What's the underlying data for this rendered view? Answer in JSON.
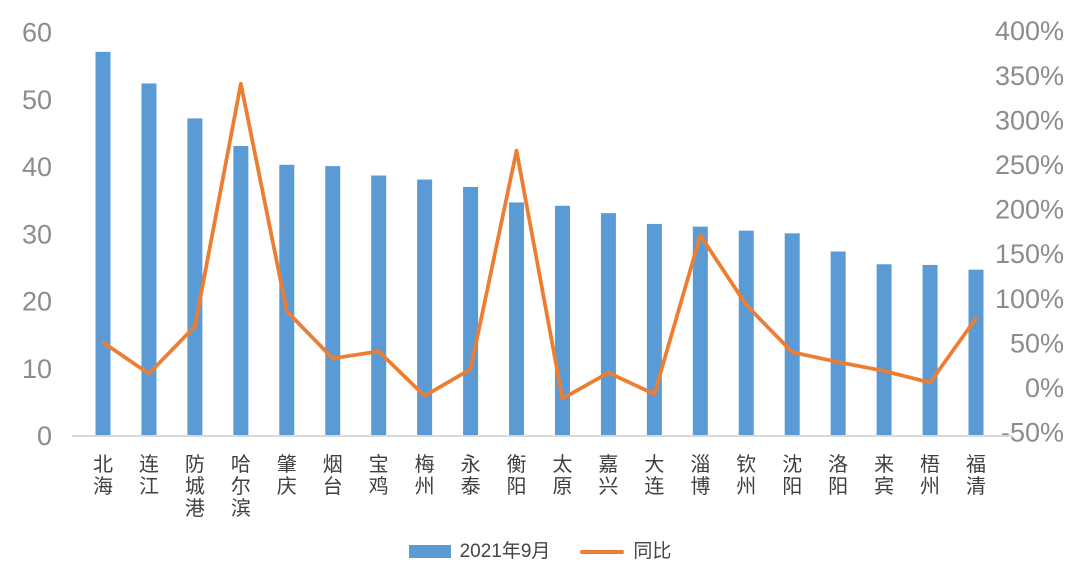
{
  "chart_data": {
    "type": "combo",
    "title": "",
    "categories": [
      "北海",
      "连江",
      "防城港",
      "哈尔滨",
      "肇庆",
      "烟台",
      "宝鸡",
      "梅州",
      "永泰",
      "衡阳",
      "太原",
      "嘉兴",
      "大连",
      "淄博",
      "钦州",
      "沈阳",
      "洛阳",
      "来宾",
      "梧州",
      "福清"
    ],
    "series": [
      {
        "name": "2021年9月",
        "type": "bar",
        "axis": "left",
        "values": [
          57,
          52.3,
          47.1,
          43,
          40.2,
          40,
          38.6,
          38,
          36.9,
          34.6,
          34.1,
          33,
          31.4,
          31,
          30.4,
          30,
          27.3,
          25.4,
          25.3,
          24.6
        ]
      },
      {
        "name": "同比",
        "type": "line",
        "axis": "right",
        "unit": "%",
        "values": [
          50,
          15,
          68,
          340,
          85,
          32,
          40,
          -10,
          20,
          265,
          -13,
          16,
          -8,
          170,
          92,
          39,
          28,
          18,
          5,
          77
        ]
      }
    ],
    "left_axis": {
      "min": 0,
      "max": 60,
      "step": 10,
      "ticks": [
        0,
        10,
        20,
        30,
        40,
        50,
        60
      ]
    },
    "right_axis": {
      "min": -50,
      "max": 400,
      "step": 50,
      "ticks": [
        -50,
        0,
        50,
        100,
        150,
        200,
        250,
        300,
        350,
        400
      ],
      "tick_labels": [
        "-50%",
        "0%",
        "50%",
        "100%",
        "150%",
        "200%",
        "250%",
        "300%",
        "350%",
        "400%"
      ]
    },
    "grid": false,
    "legend_position": "bottom"
  },
  "legend": {
    "bar_label": "2021年9月",
    "line_label": "同比"
  },
  "colors": {
    "bar": "#5B9BD5",
    "line": "#ED7D31",
    "axis_text": "#8C8C8C",
    "category_text": "#3F3F3F",
    "baseline": "#D9D9D9",
    "background": "#FFFFFF"
  }
}
